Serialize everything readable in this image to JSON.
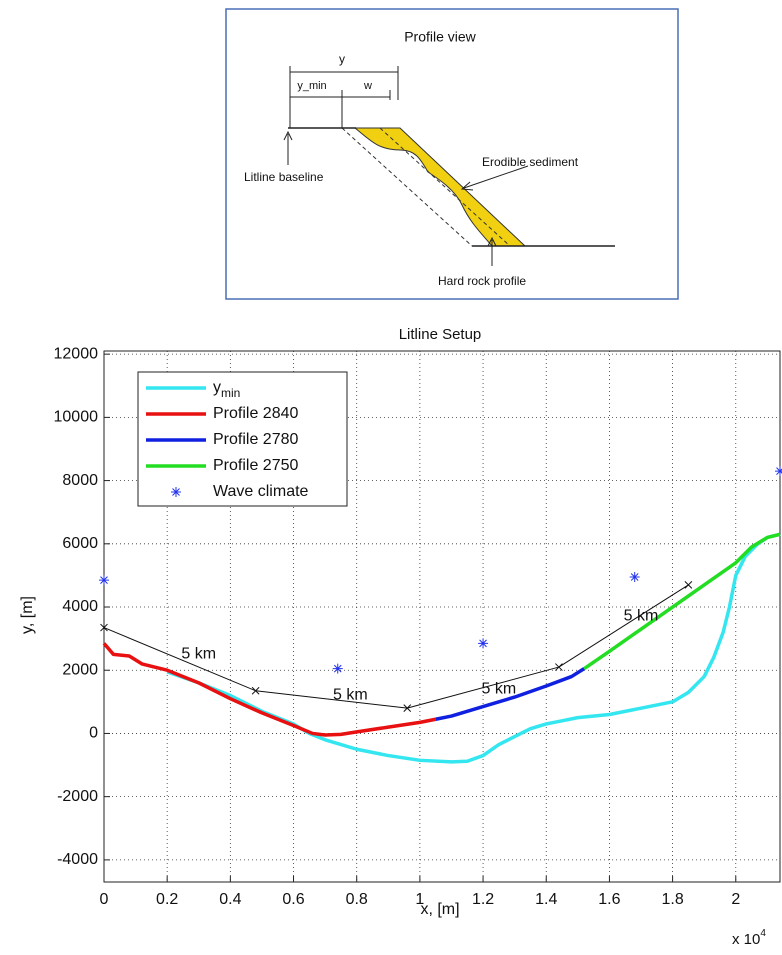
{
  "diagram": {
    "title": "Profile view",
    "dim_y": "y",
    "dim_y_min": "y_min",
    "dim_w": "w",
    "baseline_label": "Litline baseline",
    "sediment_label": "Erodible sediment",
    "rock_label": "Hard rock profile"
  },
  "chart_data": {
    "type": "line",
    "title": "Litline Setup",
    "x_label": "x, [m]",
    "y_label": "y, [m]",
    "x_scale_label": "x 10",
    "x_scale_exponent": "4",
    "xlim": [
      0,
      2.14
    ],
    "ylim": [
      -4700,
      12100
    ],
    "xticks": [
      0,
      0.2,
      0.4,
      0.6,
      0.8,
      1,
      1.2,
      1.4,
      1.6,
      1.8,
      2
    ],
    "yticks": [
      -4000,
      -2000,
      0,
      2000,
      4000,
      6000,
      8000,
      10000,
      12000
    ],
    "grid": true,
    "legend": "upper left",
    "series": [
      {
        "name": "y",
        "name_subscript": "min",
        "color": "#33e6f0",
        "mode": "line",
        "x": [
          0.2,
          0.3,
          0.4,
          0.5,
          0.6,
          0.65,
          0.7,
          0.8,
          0.9,
          1.0,
          1.1,
          1.15,
          1.2,
          1.25,
          1.3,
          1.35,
          1.4,
          1.45,
          1.5,
          1.6,
          1.7,
          1.8,
          1.85,
          1.9,
          1.93,
          1.96,
          1.98,
          2.0,
          2.03,
          2.07,
          2.1,
          2.14
        ],
        "values": [
          1950,
          1600,
          1200,
          700,
          300,
          0,
          -200,
          -500,
          -700,
          -850,
          -900,
          -880,
          -700,
          -350,
          -100,
          150,
          300,
          400,
          500,
          600,
          800,
          1000,
          1300,
          1800,
          2400,
          3200,
          4000,
          5000,
          5600,
          6000,
          6200,
          6300
        ]
      },
      {
        "name": "Profile 2840",
        "color": "#e81010",
        "mode": "line",
        "x": [
          0,
          0.03,
          0.08,
          0.12,
          0.2,
          0.3,
          0.4,
          0.5,
          0.6,
          0.66,
          0.7,
          0.75,
          0.8,
          0.9,
          1.0,
          1.05
        ],
        "values": [
          2850,
          2500,
          2450,
          2200,
          2000,
          1600,
          1100,
          650,
          250,
          0,
          -50,
          -30,
          50,
          200,
          350,
          450
        ]
      },
      {
        "name": "Profile 2780",
        "color": "#1020e0",
        "mode": "line",
        "x": [
          1.05,
          1.1,
          1.2,
          1.3,
          1.4,
          1.48,
          1.52
        ],
        "values": [
          450,
          550,
          850,
          1150,
          1500,
          1800,
          2050
        ]
      },
      {
        "name": "Profile 2750",
        "color": "#22dd22",
        "mode": "line",
        "x": [
          1.52,
          1.6,
          1.7,
          1.8,
          1.9,
          2.0,
          2.05,
          2.1,
          2.14
        ],
        "values": [
          2050,
          2600,
          3300,
          4000,
          4700,
          5400,
          5900,
          6200,
          6300
        ]
      },
      {
        "name": "Wave climate",
        "color": "#2233ee",
        "mode": "markers",
        "x": [
          0,
          0.74,
          1.2,
          1.68,
          2.14
        ],
        "values": [
          4850,
          2050,
          2850,
          4950,
          8300
        ]
      },
      {
        "color": "#111111",
        "mode": "line+markers",
        "x": [
          0,
          0.48,
          0.96,
          1.44,
          1.85
        ],
        "values": [
          3350,
          1350,
          800,
          2100,
          4700
        ]
      }
    ],
    "annotations": [
      {
        "text": "5 km",
        "x": 0.3,
        "y": 2500
      },
      {
        "text": "5 km",
        "x": 0.78,
        "y": 1200
      },
      {
        "text": "5 km",
        "x": 1.25,
        "y": 1400
      },
      {
        "text": "5 km",
        "x": 1.7,
        "y": 3700
      }
    ]
  }
}
